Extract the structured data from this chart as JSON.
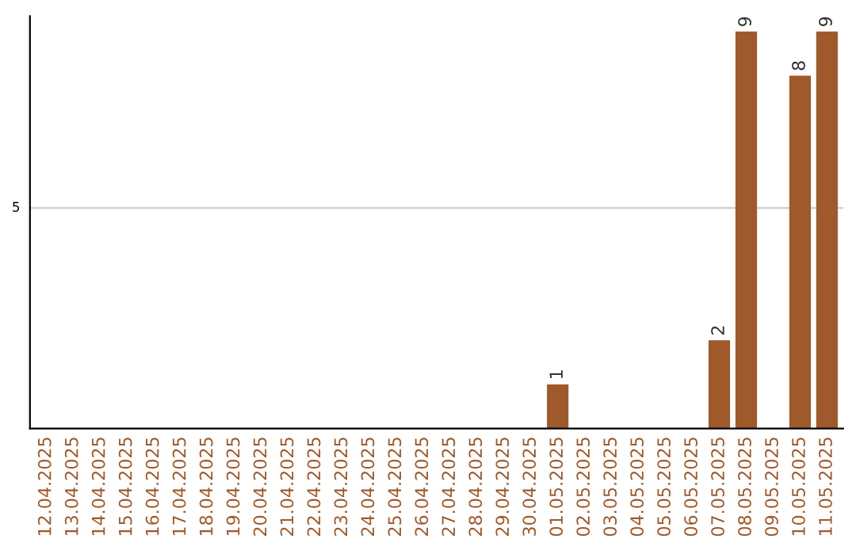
{
  "chart_data": {
    "type": "bar",
    "categories": [
      "12.04.2025",
      "13.04.2025",
      "14.04.2025",
      "15.04.2025",
      "16.04.2025",
      "17.04.2025",
      "18.04.2025",
      "19.04.2025",
      "20.04.2025",
      "21.04.2025",
      "22.04.2025",
      "23.04.2025",
      "24.04.2025",
      "25.04.2025",
      "26.04.2025",
      "27.04.2025",
      "28.04.2025",
      "29.04.2025",
      "30.04.2025",
      "01.05.2025",
      "02.05.2025",
      "03.05.2025",
      "04.05.2025",
      "05.05.2025",
      "06.05.2025",
      "07.05.2025",
      "08.05.2025",
      "09.05.2025",
      "10.05.2025",
      "11.05.2025"
    ],
    "values": [
      null,
      null,
      null,
      null,
      null,
      null,
      null,
      null,
      null,
      null,
      null,
      null,
      null,
      null,
      null,
      null,
      null,
      null,
      null,
      1,
      null,
      null,
      null,
      null,
      null,
      2,
      9,
      null,
      8,
      9
    ],
    "data_labels": true,
    "color": "#a0592a",
    "ylim": [
      0,
      9.35
    ],
    "ref_lines": [
      {
        "axis": "y",
        "value": 5,
        "label": "5",
        "color": "#cccccc"
      }
    ]
  }
}
